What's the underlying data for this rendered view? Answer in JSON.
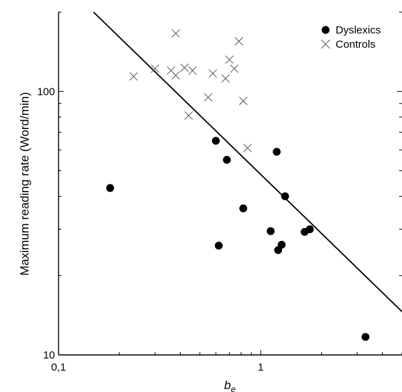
{
  "chart_data": {
    "type": "scatter",
    "xscale": "log",
    "yscale": "log",
    "xlim": [
      0.1,
      5.0
    ],
    "ylim": [
      10,
      200
    ],
    "xlabel": "b",
    "xlabel_sub": "e",
    "ylabel": "Maximum reading rate (Word/min)",
    "x_ticks": [
      {
        "value": 0.1,
        "label": "0,1"
      },
      {
        "value": 1,
        "label": "1"
      }
    ],
    "y_ticks": [
      {
        "value": 10,
        "label": "10"
      },
      {
        "value": 100,
        "label": "100"
      }
    ],
    "legend_position": "top-right",
    "grid": false,
    "series": [
      {
        "name": "Dyslexics",
        "marker": "filled-circle",
        "color": "#000000",
        "points": [
          {
            "x": 0.18,
            "y": 43
          },
          {
            "x": 0.6,
            "y": 65
          },
          {
            "x": 0.62,
            "y": 26
          },
          {
            "x": 0.68,
            "y": 55
          },
          {
            "x": 0.82,
            "y": 36
          },
          {
            "x": 1.12,
            "y": 29.5
          },
          {
            "x": 1.2,
            "y": 59
          },
          {
            "x": 1.22,
            "y": 25
          },
          {
            "x": 1.27,
            "y": 26.2
          },
          {
            "x": 1.32,
            "y": 40
          },
          {
            "x": 1.65,
            "y": 29.3
          },
          {
            "x": 1.75,
            "y": 30
          },
          {
            "x": 3.3,
            "y": 11.7
          }
        ]
      },
      {
        "name": "Controls",
        "marker": "cross",
        "color": "#666666",
        "points": [
          {
            "x": 0.235,
            "y": 114
          },
          {
            "x": 0.3,
            "y": 122
          },
          {
            "x": 0.36,
            "y": 120
          },
          {
            "x": 0.38,
            "y": 166
          },
          {
            "x": 0.38,
            "y": 115
          },
          {
            "x": 0.42,
            "y": 123
          },
          {
            "x": 0.44,
            "y": 81
          },
          {
            "x": 0.46,
            "y": 120
          },
          {
            "x": 0.55,
            "y": 95
          },
          {
            "x": 0.58,
            "y": 117
          },
          {
            "x": 0.67,
            "y": 112
          },
          {
            "x": 0.7,
            "y": 132
          },
          {
            "x": 0.74,
            "y": 122
          },
          {
            "x": 0.78,
            "y": 155
          },
          {
            "x": 0.82,
            "y": 92
          },
          {
            "x": 0.86,
            "y": 61
          }
        ]
      }
    ],
    "fit_line": {
      "x": [
        0.149,
        5.0
      ],
      "y": [
        200,
        14.6
      ],
      "color": "#000000"
    }
  }
}
